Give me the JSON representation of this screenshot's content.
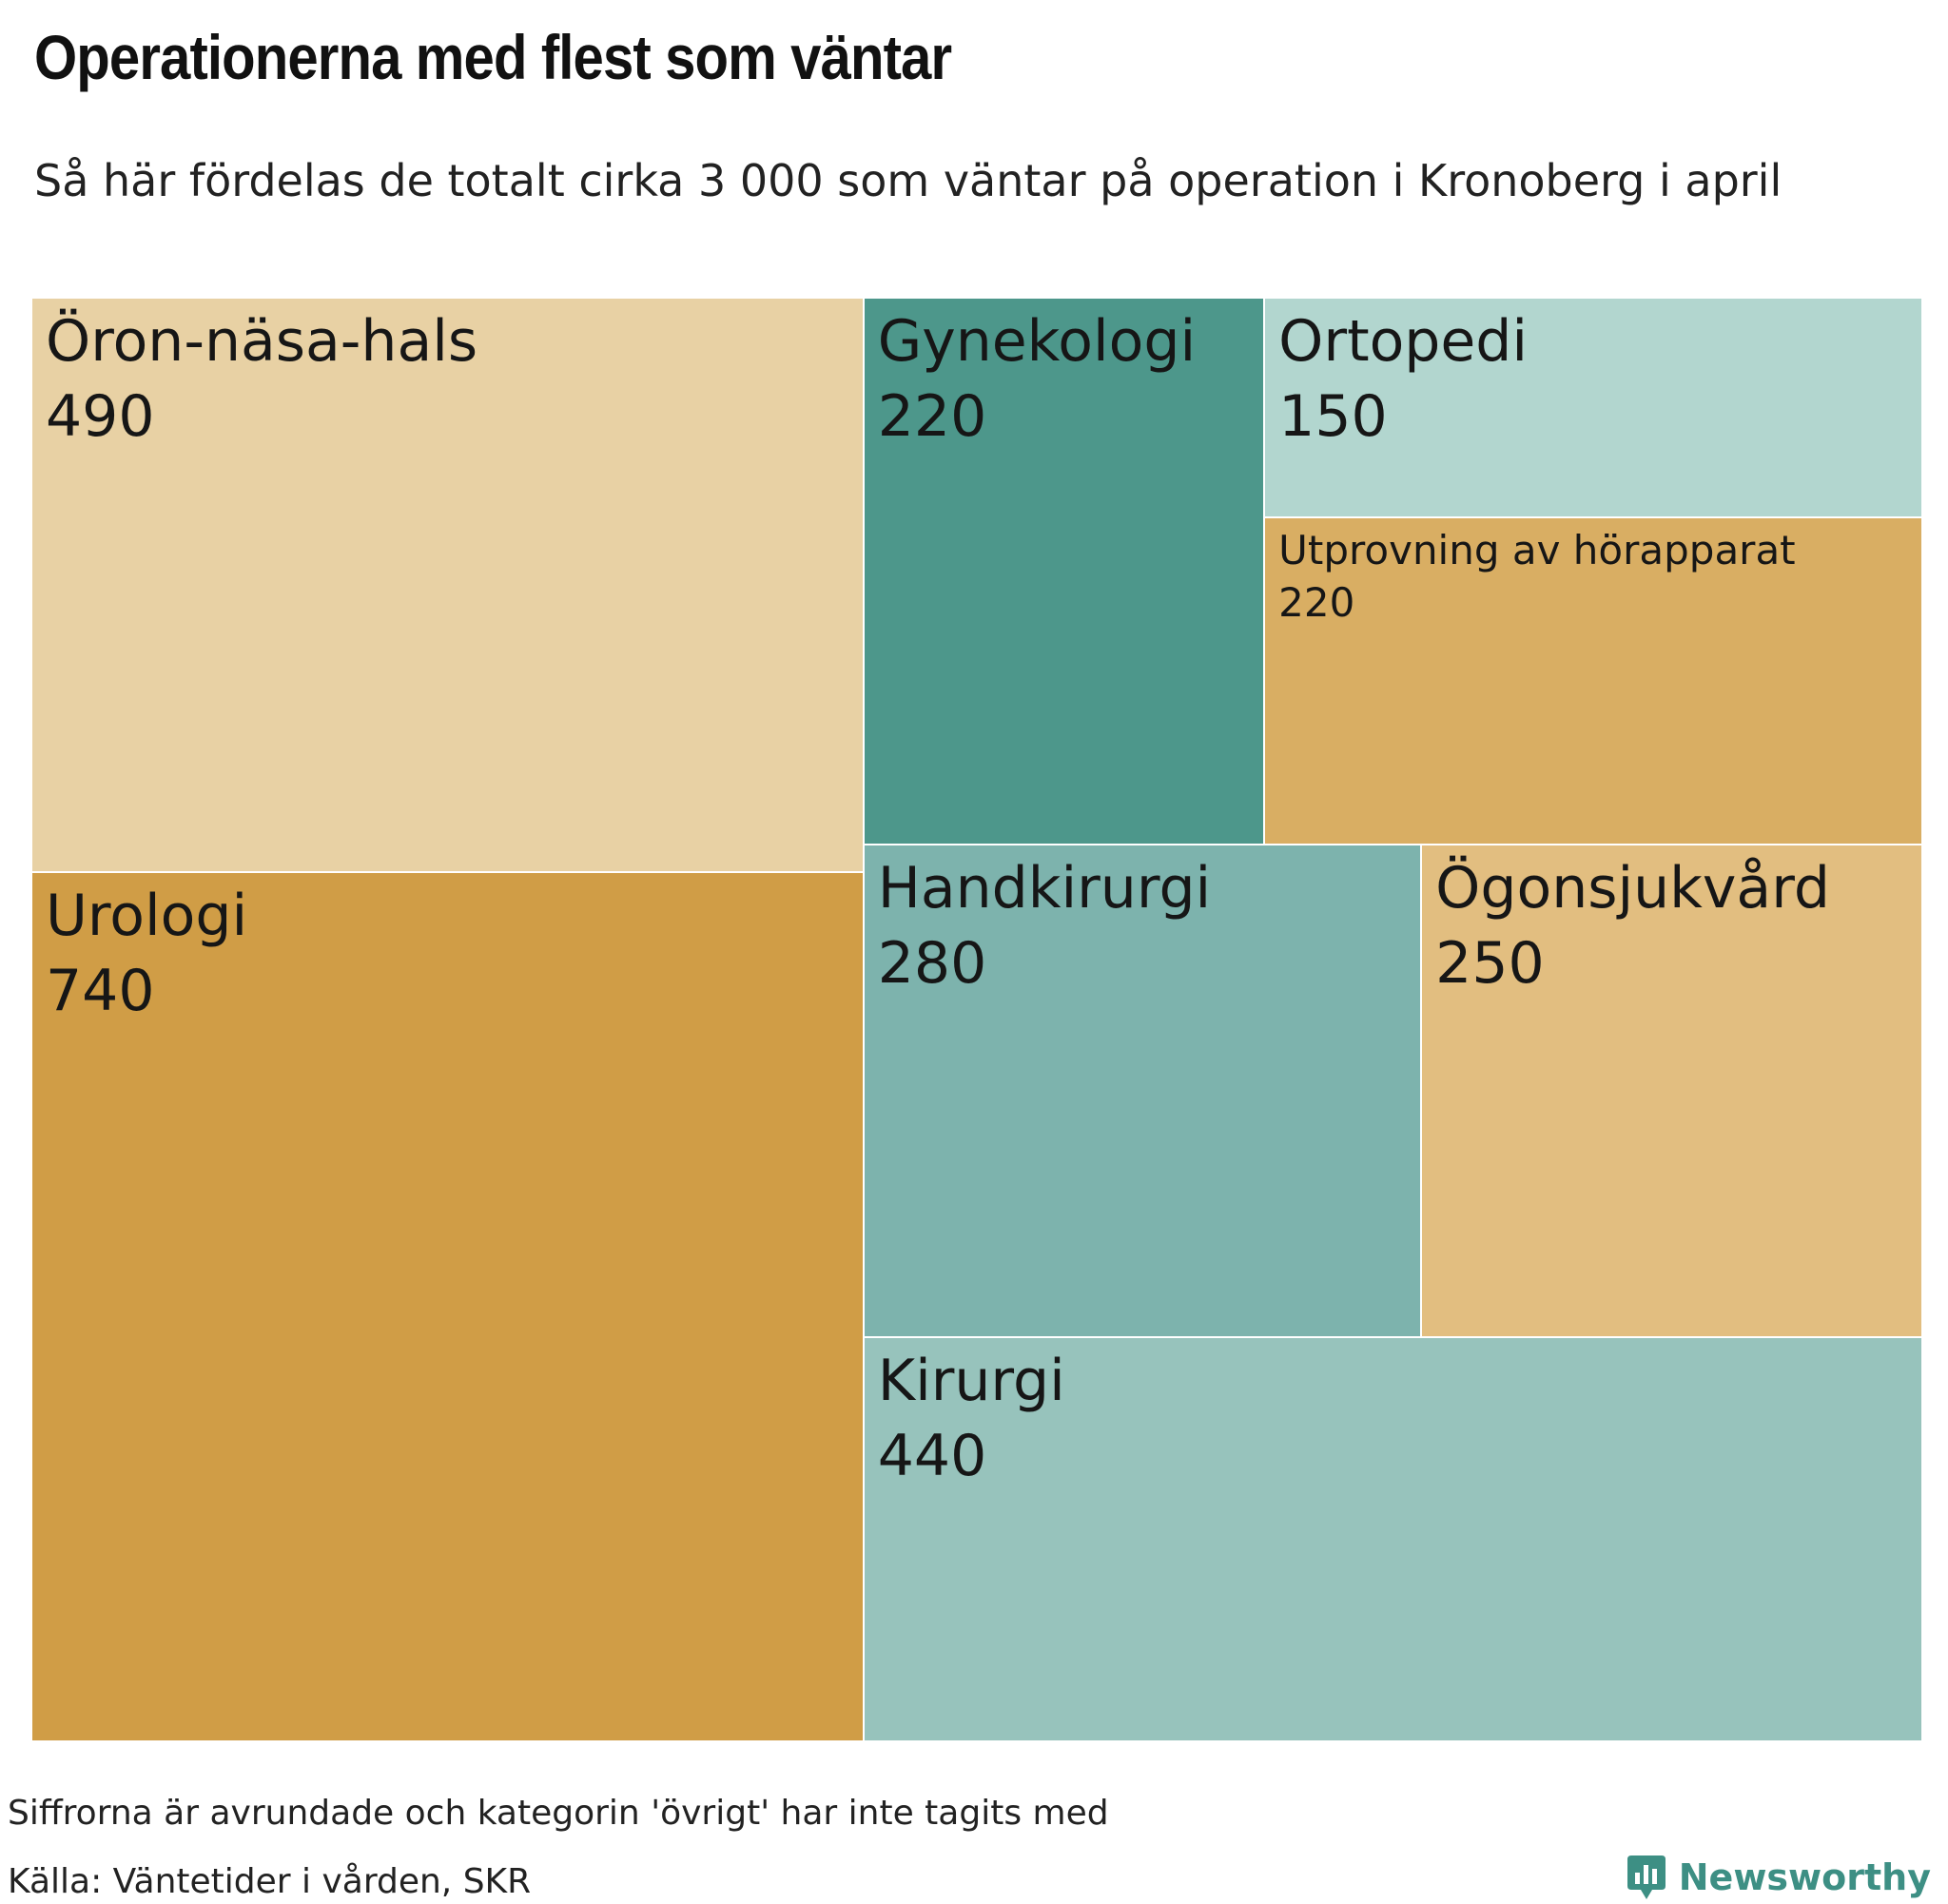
{
  "title": "Operationerna med flest som väntar",
  "subtitle": "Så här fördelas de totalt cirka 3 000 som väntar på operation i Kronoberg i april",
  "footer": {
    "note": "Siffrorna är avrundade och kategorin 'övrigt' har inte tagits med",
    "source": "Källa: Väntetider i vården, SKR",
    "brand": "Newsworthy",
    "brand_color": "#3d8f84"
  },
  "chart_data": {
    "type": "treemap",
    "title": "Operationerna med flest som väntar",
    "subtitle": "Så här fördelas de totalt cirka 3 000 som väntar på operation i Kronoberg i april",
    "items": [
      {
        "name": "Urologi",
        "value": 740,
        "color": "#d09d46"
      },
      {
        "name": "Öron-näsa-hals",
        "value": 490,
        "color": "#e8d1a4"
      },
      {
        "name": "Kirurgi",
        "value": 440,
        "color": "#97c3bc"
      },
      {
        "name": "Handkirurgi",
        "value": 280,
        "color": "#7db3ad"
      },
      {
        "name": "Ögonsjukvård",
        "value": 250,
        "color": "#e2be80"
      },
      {
        "name": "Gynekologi",
        "value": 220,
        "color": "#4d978b"
      },
      {
        "name": "Utprovning av hörapparat",
        "value": 220,
        "color": "#d9ae63"
      },
      {
        "name": "Ortopedi",
        "value": 150,
        "color": "#b2d6cf"
      }
    ]
  }
}
